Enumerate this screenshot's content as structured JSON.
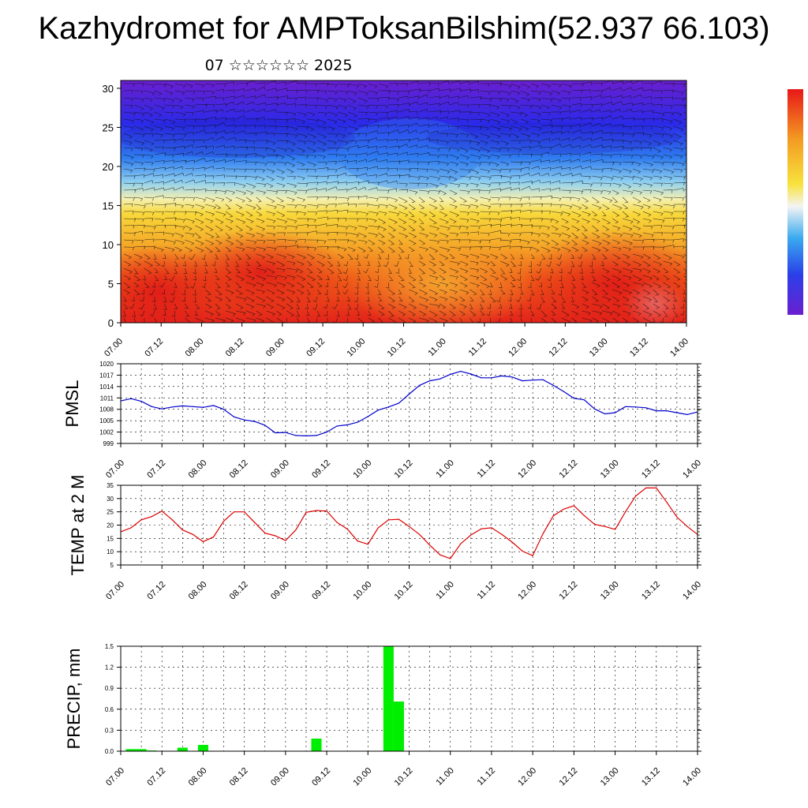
{
  "title": "Kazhydromet for AMPToksanBilshim(52.937 66.103)",
  "subtitle": "07 ☆☆☆☆☆☆ 2025",
  "time_ticks": [
    "07.00",
    "07.12",
    "08.00",
    "08.12",
    "09.00",
    "09.12",
    "10.00",
    "10.12",
    "11.00",
    "11.12",
    "12.00",
    "12.12",
    "13.00",
    "13.12",
    "14.00"
  ],
  "chart_data": [
    {
      "type": "heatmap",
      "title": "",
      "xlabel": "",
      "ylabel": "",
      "y_ticks": [
        0,
        5,
        10,
        15,
        20,
        25,
        30
      ],
      "ylim": [
        0,
        31
      ],
      "x_range_hours": [
        0,
        168
      ],
      "overlay": "wind barbs",
      "colormap": [
        "#5a1fd0",
        "#2230e8",
        "#2f9bf0",
        "#f0f0f0",
        "#f6d23a",
        "#f39622",
        "#e83018",
        "#d81a1a"
      ],
      "colorbar": true
    },
    {
      "type": "line",
      "ylabel": "PMSL",
      "ylim": [
        999,
        1020
      ],
      "y_ticks": [
        999,
        1002,
        1005,
        1008,
        1011,
        1014,
        1017,
        1020
      ],
      "grid": true,
      "color": "#0000cc",
      "x_hours": [
        0,
        3,
        6,
        9,
        12,
        15,
        18,
        21,
        24,
        27,
        30,
        33,
        36,
        39,
        42,
        45,
        48,
        51,
        54,
        57,
        60,
        63,
        66,
        69,
        72,
        75,
        78,
        81,
        84,
        87,
        90,
        93,
        96,
        99,
        102,
        105,
        108,
        111,
        114,
        117,
        120,
        123,
        126,
        129,
        132,
        135,
        138,
        141,
        144,
        147,
        150,
        153,
        156,
        159,
        162,
        165,
        168
      ],
      "values": [
        1010.2,
        1010.8,
        1010.1,
        1008.7,
        1008.1,
        1008.6,
        1008.9,
        1008.7,
        1008.5,
        1009.0,
        1008.0,
        1006.0,
        1005.2,
        1004.8,
        1003.8,
        1001.8,
        1001.9,
        1001.1,
        1001.0,
        1001.1,
        1002.0,
        1003.6,
        1003.9,
        1004.6,
        1006.1,
        1007.8,
        1008.6,
        1009.6,
        1012.0,
        1014.3,
        1015.5,
        1016.0,
        1017.2,
        1018.0,
        1017.3,
        1016.3,
        1016.3,
        1016.8,
        1016.5,
        1015.5,
        1015.7,
        1015.8,
        1014.3,
        1012.7,
        1010.9,
        1010.5,
        1008.1,
        1006.8,
        1007.1,
        1008.7,
        1008.6,
        1008.4,
        1007.6,
        1007.6,
        1007.1,
        1006.6,
        1007.3
      ]
    },
    {
      "type": "line",
      "ylabel": "TEMP at 2 M",
      "ylim": [
        5,
        35
      ],
      "y_ticks": [
        5,
        10,
        15,
        20,
        25,
        30,
        35
      ],
      "grid": true,
      "color": "#dd0000",
      "x_hours": [
        0,
        3,
        6,
        9,
        12,
        15,
        18,
        21,
        24,
        27,
        30,
        33,
        36,
        39,
        42,
        45,
        48,
        51,
        54,
        57,
        60,
        63,
        66,
        69,
        72,
        75,
        78,
        81,
        84,
        87,
        90,
        93,
        96,
        99,
        102,
        105,
        108,
        111,
        114,
        117,
        120,
        123,
        126,
        129,
        132,
        135,
        138,
        141,
        144,
        147,
        150,
        153,
        156,
        159,
        162,
        165,
        168
      ],
      "values": [
        17.5,
        19.0,
        22.0,
        23.2,
        25.3,
        22.0,
        18.2,
        16.5,
        13.8,
        15.5,
        21.5,
        25.0,
        25.0,
        21.0,
        17.0,
        16.0,
        14.2,
        18.2,
        24.8,
        25.5,
        25.3,
        21.0,
        18.5,
        14.0,
        12.8,
        19.0,
        22.0,
        22.2,
        19.5,
        16.5,
        12.5,
        8.8,
        7.4,
        13.0,
        16.3,
        18.6,
        19.0,
        16.5,
        13.6,
        10.2,
        8.5,
        16.8,
        23.5,
        26.0,
        27.3,
        23.6,
        20.3,
        19.5,
        18.4,
        25.0,
        31.0,
        34.0,
        34.0,
        28.7,
        23.0,
        19.5,
        16.5
      ]
    },
    {
      "type": "bar",
      "ylabel": "PRECIP, mm",
      "ylim": [
        0,
        1.5
      ],
      "y_ticks": [
        "0.0",
        "0.3",
        "0.6",
        "0.9",
        "1.2",
        "1.5"
      ],
      "grid": true,
      "color": "#00ee00",
      "bars": [
        {
          "x_hours": 3,
          "value": 0.03
        },
        {
          "x_hours": 6,
          "value": 0.03
        },
        {
          "x_hours": 9,
          "value": 0.01
        },
        {
          "x_hours": 18,
          "value": 0.05
        },
        {
          "x_hours": 24,
          "value": 0.09
        },
        {
          "x_hours": 57,
          "value": 0.18
        },
        {
          "x_hours": 78,
          "value": 1.5
        },
        {
          "x_hours": 81,
          "value": 0.71
        }
      ]
    }
  ]
}
